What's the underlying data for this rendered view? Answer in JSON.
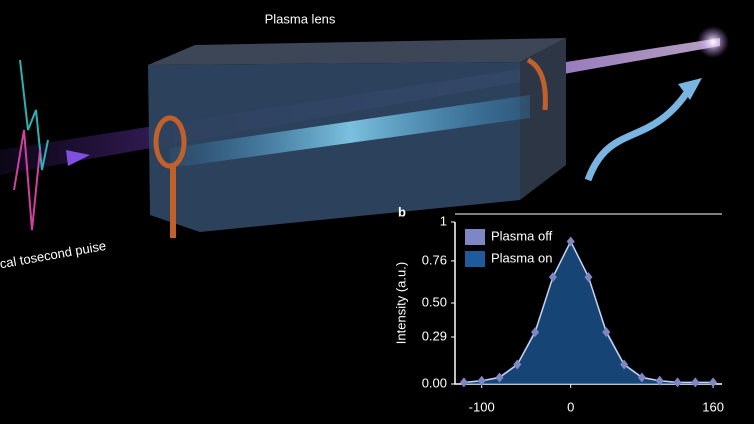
{
  "illustration": {
    "lens_label": "Plasma lens",
    "pulse_label": "cal tosecond puise"
  },
  "chart_data": {
    "type": "line",
    "panel_label": "b",
    "ylabel": "Intensity (a.u.)",
    "x": [
      -120,
      -100,
      -80,
      -60,
      -40,
      -20,
      0,
      20,
      40,
      60,
      80,
      100,
      120,
      140,
      160
    ],
    "series": [
      {
        "name": "Plasma off",
        "color": "#7f86c4",
        "values": [
          0.01,
          0.02,
          0.04,
          0.12,
          0.32,
          0.66,
          0.88,
          0.66,
          0.32,
          0.12,
          0.04,
          0.02,
          0.01,
          0.01,
          0.01
        ]
      },
      {
        "name": "Plasma on",
        "color": "#1e5b9c",
        "values": [
          0.01,
          0.02,
          0.05,
          0.13,
          0.34,
          0.67,
          0.89,
          0.67,
          0.34,
          0.13,
          0.05,
          0.02,
          0.01,
          0.01,
          0.01
        ]
      }
    ],
    "xlim": [
      -130,
      170
    ],
    "xticks": [
      -100,
      0,
      160
    ],
    "ylim": [
      0,
      1
    ],
    "yticks": [
      1,
      0.76,
      {
        "value": 0.5,
        "label": "0.50"
      },
      0.29,
      {
        "value": 0,
        "label": "0.00"
      }
    ]
  }
}
